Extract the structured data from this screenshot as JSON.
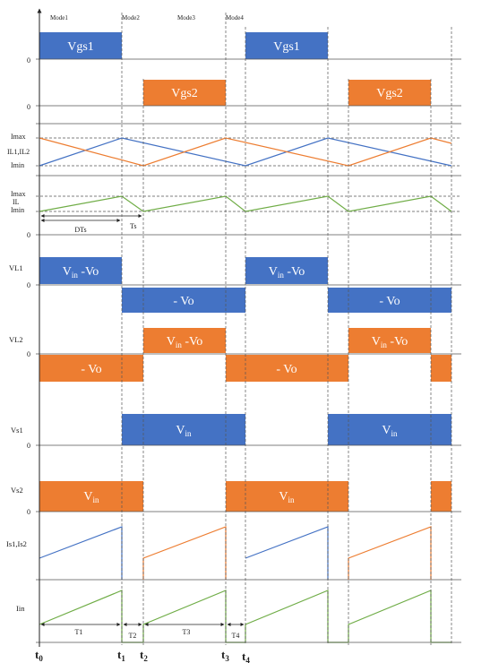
{
  "modes": [
    "Mode1",
    "Mode2",
    "Mode3",
    "Mode4"
  ],
  "colors": {
    "blue": "#4472c4",
    "orange": "#ed7d31",
    "green": "#70ad47"
  },
  "zero_label": "0",
  "signals": {
    "vgs1": {
      "box": "Vgs1"
    },
    "vgs2": {
      "box": "Vgs2"
    },
    "il1il2": {
      "imax": "Imax",
      "name": "IL1,IL2",
      "imin": "Imin"
    },
    "il": {
      "imax": "Imax",
      "name": "IL",
      "imin": "Imin",
      "dts": "DTs",
      "ts": "Ts"
    },
    "vl1": {
      "name": "VL1",
      "pos_main": "V",
      "pos_sub": "in",
      "pos_tail": " -Vo",
      "neg": "- Vo"
    },
    "vl2": {
      "name": "VL2",
      "pos_main": "V",
      "pos_sub": "in",
      "pos_tail": " -Vo",
      "neg": "- Vo"
    },
    "vs1": {
      "name": "Vs1",
      "main": "V",
      "sub": "in"
    },
    "vs2": {
      "name": "Vs2",
      "main": "V",
      "sub": "in"
    },
    "is1is2": {
      "name": "Is1,Is2"
    },
    "iin": {
      "name": "Iin"
    }
  },
  "intervals": [
    "T1",
    "T2",
    "T3",
    "T4"
  ],
  "time_ticks": [
    {
      "main": "t",
      "sub": "0"
    },
    {
      "main": "t",
      "sub": "1"
    },
    {
      "main": "t",
      "sub": "2"
    },
    {
      "main": "t",
      "sub": "3"
    },
    {
      "main": "t",
      "sub": "4"
    }
  ]
}
